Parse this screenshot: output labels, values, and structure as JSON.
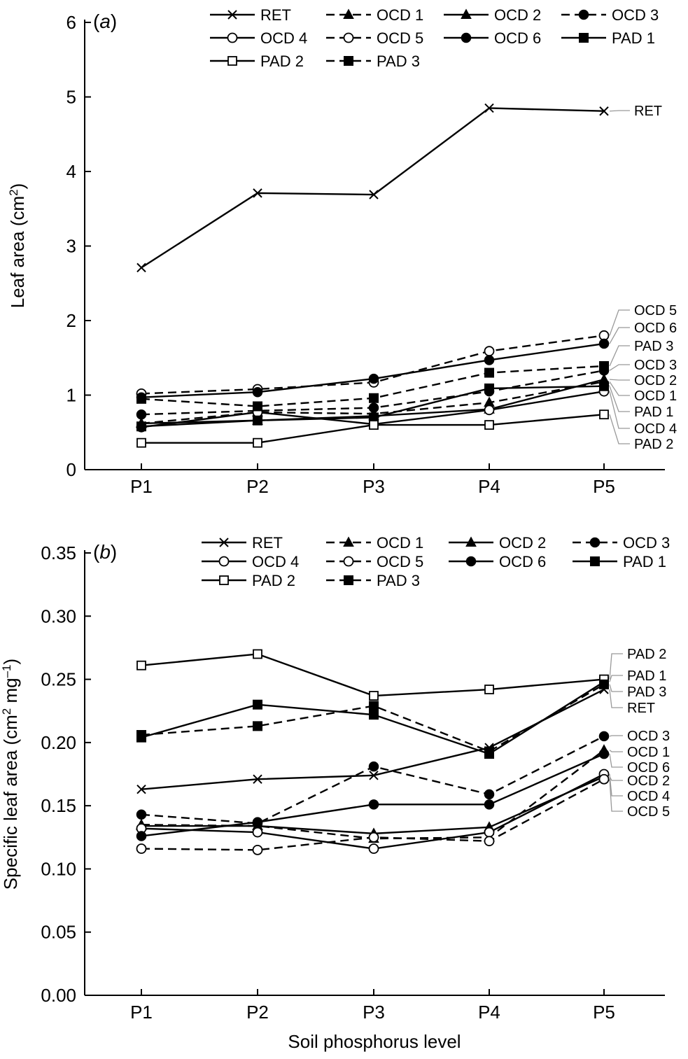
{
  "xlabel_common": "Soil phosphorus level",
  "chart_data": [
    {
      "type": "line",
      "panel_label": "a",
      "title": "",
      "xlabel": "",
      "ylabel": "Leaf area (cm",
      "ylabel_sup": "2",
      "ylabel_end": ")",
      "categories": [
        "P1",
        "P2",
        "P3",
        "P4",
        "P5"
      ],
      "ylim": [
        0,
        6
      ],
      "yticks": [
        "0",
        "1",
        "2",
        "3",
        "4",
        "5",
        "6"
      ],
      "ytick_values": [
        0,
        1,
        2,
        3,
        4,
        5,
        6
      ],
      "legend_position": "top",
      "series": [
        {
          "name": "RET",
          "marker": "x",
          "dashed": false,
          "values": [
            2.71,
            3.71,
            3.69,
            4.85,
            4.81
          ]
        },
        {
          "name": "OCD 1",
          "marker": "triangle-filled",
          "dashed": true,
          "values": [
            0.62,
            0.77,
            0.75,
            0.9,
            1.18
          ]
        },
        {
          "name": "OCD 2",
          "marker": "triangle-filled",
          "dashed": false,
          "values": [
            0.62,
            0.66,
            0.72,
            0.81,
            1.21
          ]
        },
        {
          "name": "OCD 3",
          "marker": "circle-filled",
          "dashed": true,
          "values": [
            0.74,
            0.79,
            0.83,
            1.05,
            1.33
          ]
        },
        {
          "name": "OCD 4",
          "marker": "circle-open",
          "dashed": false,
          "values": [
            0.57,
            0.77,
            0.61,
            0.8,
            1.05
          ]
        },
        {
          "name": "OCD 5",
          "marker": "circle-open",
          "dashed": true,
          "values": [
            1.02,
            1.08,
            1.17,
            1.59,
            1.8
          ]
        },
        {
          "name": "OCD 6",
          "marker": "circle-filled",
          "dashed": false,
          "values": [
            0.97,
            1.04,
            1.22,
            1.47,
            1.69
          ]
        },
        {
          "name": "PAD 1",
          "marker": "square-filled",
          "dashed": false,
          "values": [
            0.58,
            0.66,
            0.7,
            1.09,
            1.12
          ]
        },
        {
          "name": "PAD 2",
          "marker": "square-open",
          "dashed": false,
          "values": [
            0.36,
            0.36,
            0.6,
            0.6,
            0.74
          ]
        },
        {
          "name": "PAD 3",
          "marker": "square-filled",
          "dashed": true,
          "values": [
            0.95,
            0.85,
            0.96,
            1.3,
            1.39
          ]
        }
      ],
      "end_labels": [
        {
          "text": "RET",
          "series": "RET"
        },
        {
          "text": "OCD 5",
          "series": "OCD 5"
        },
        {
          "text": "OCD 6",
          "series": "OCD 6"
        },
        {
          "text": "PAD 3",
          "series": "PAD 3"
        },
        {
          "text": "OCD 3",
          "series": "OCD 3"
        },
        {
          "text": "OCD 2",
          "series": "OCD 2"
        },
        {
          "text": "OCD 1",
          "series": "OCD 1"
        },
        {
          "text": "PAD 1",
          "series": "PAD 1"
        },
        {
          "text": "OCD 4",
          "series": "OCD 4"
        },
        {
          "text": "PAD 2",
          "series": "PAD 2"
        }
      ]
    },
    {
      "type": "line",
      "panel_label": "b",
      "title": "",
      "xlabel": "Soil phosphorus level",
      "ylabel": "Specific leaf area (cm",
      "ylabel_sup": "2",
      "ylabel_mid": " mg",
      "ylabel_sup2": "–1",
      "ylabel_end": ")",
      "categories": [
        "P1",
        "P2",
        "P3",
        "P4",
        "P5"
      ],
      "ylim": [
        0,
        0.35
      ],
      "yticks": [
        "0.00",
        "0.05",
        "0.10",
        "0.15",
        "0.20",
        "0.25",
        "0.30",
        "0.35"
      ],
      "ytick_values": [
        0,
        0.05,
        0.1,
        0.15,
        0.2,
        0.25,
        0.3,
        0.35
      ],
      "legend_position": "top",
      "series": [
        {
          "name": "RET",
          "marker": "x",
          "dashed": false,
          "values": [
            0.163,
            0.171,
            0.174,
            0.196,
            0.242
          ]
        },
        {
          "name": "OCD 1",
          "marker": "triangle-filled",
          "dashed": true,
          "values": [
            0.135,
            0.134,
            0.124,
            0.125,
            0.194
          ]
        },
        {
          "name": "OCD 2",
          "marker": "triangle-filled",
          "dashed": false,
          "values": [
            0.134,
            0.134,
            0.128,
            0.133,
            0.173
          ]
        },
        {
          "name": "OCD 3",
          "marker": "circle-filled",
          "dashed": true,
          "values": [
            0.143,
            0.136,
            0.181,
            0.159,
            0.205
          ]
        },
        {
          "name": "OCD 4",
          "marker": "circle-open",
          "dashed": false,
          "values": [
            0.132,
            0.129,
            0.116,
            0.129,
            0.175
          ]
        },
        {
          "name": "OCD 5",
          "marker": "circle-open",
          "dashed": true,
          "values": [
            0.116,
            0.115,
            0.125,
            0.122,
            0.171
          ]
        },
        {
          "name": "OCD 6",
          "marker": "circle-filled",
          "dashed": false,
          "values": [
            0.126,
            0.137,
            0.151,
            0.151,
            0.191
          ]
        },
        {
          "name": "PAD 1",
          "marker": "square-filled",
          "dashed": false,
          "values": [
            0.204,
            0.23,
            0.222,
            0.191,
            0.248
          ]
        },
        {
          "name": "PAD 2",
          "marker": "square-open",
          "dashed": false,
          "values": [
            0.261,
            0.27,
            0.237,
            0.242,
            0.25
          ]
        },
        {
          "name": "PAD 3",
          "marker": "square-filled",
          "dashed": true,
          "values": [
            0.206,
            0.213,
            0.229,
            0.193,
            0.246
          ]
        }
      ],
      "end_labels": [
        {
          "text": "PAD 2",
          "series": "PAD 2"
        },
        {
          "text": "PAD 1",
          "series": "PAD 1"
        },
        {
          "text": "PAD 3",
          "series": "PAD 3"
        },
        {
          "text": "RET",
          "series": "RET"
        },
        {
          "text": "OCD 3",
          "series": "OCD 3"
        },
        {
          "text": "OCD 1",
          "series": "OCD 1"
        },
        {
          "text": "OCD 6",
          "series": "OCD 6"
        },
        {
          "text": "OCD 2",
          "series": "OCD 2"
        },
        {
          "text": "OCD 4",
          "series": "OCD 4"
        },
        {
          "text": "OCD 5",
          "series": "OCD 5"
        }
      ]
    }
  ]
}
